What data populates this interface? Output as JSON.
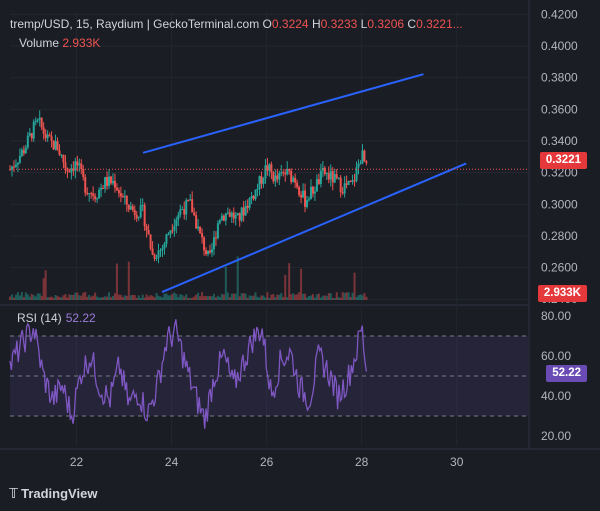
{
  "header": {
    "symbol": "tremp/USD, 15, Raydium | GeckoTerminal.com",
    "o_label": "O",
    "o_value": "0.3224",
    "h_label": "H",
    "h_value": "0.3233",
    "l_label": "L",
    "l_value": "0.3206",
    "c_label": "C",
    "c_value": "0.3221..."
  },
  "volume": {
    "label": "Volume",
    "value": "2.933K"
  },
  "rsi": {
    "label": "RSI (14)",
    "value": "52.22"
  },
  "price_badge": "0.3221",
  "volume_badge": "2.933K",
  "rsi_badge": "52.22",
  "branding": "TradingView",
  "colors": {
    "up": "#26a69a",
    "down": "#ef5350",
    "channel": "#2962ff",
    "rsi": "#7e57c2",
    "bg": "#1b1d25"
  },
  "chart_data": [
    {
      "type": "candlestick",
      "title": "tremp/USD, 15, Raydium",
      "x_ticks": [
        "22",
        "24",
        "26",
        "28",
        "30"
      ],
      "x_range": [
        20.6,
        31.5
      ],
      "y_ticks": [
        "0.4200",
        "0.4000",
        "0.3800",
        "0.3600",
        "0.3400",
        "0.3200",
        "0.3000",
        "0.2800",
        "0.2600",
        "0.2400"
      ],
      "y_range": [
        0.2395,
        0.4215
      ],
      "last_price": 0.3221,
      "close_series_approx": [
        [
          20.6,
          0.322
        ],
        [
          20.9,
          0.335
        ],
        [
          21.1,
          0.348
        ],
        [
          21.2,
          0.352
        ],
        [
          21.4,
          0.34
        ],
        [
          21.6,
          0.336
        ],
        [
          21.8,
          0.322
        ],
        [
          22.0,
          0.326
        ],
        [
          22.2,
          0.31
        ],
        [
          22.4,
          0.306
        ],
        [
          22.6,
          0.314
        ],
        [
          22.8,
          0.314
        ],
        [
          23.0,
          0.302
        ],
        [
          23.2,
          0.296
        ],
        [
          23.4,
          0.295
        ],
        [
          23.6,
          0.268
        ],
        [
          23.8,
          0.272
        ],
        [
          24.0,
          0.287
        ],
        [
          24.2,
          0.297
        ],
        [
          24.4,
          0.3
        ],
        [
          24.6,
          0.28
        ],
        [
          24.8,
          0.264
        ],
        [
          25.0,
          0.292
        ],
        [
          25.2,
          0.295
        ],
        [
          25.4,
          0.29
        ],
        [
          25.6,
          0.301
        ],
        [
          25.8,
          0.31
        ],
        [
          26.0,
          0.324
        ],
        [
          26.2,
          0.315
        ],
        [
          26.4,
          0.32
        ],
        [
          26.6,
          0.316
        ],
        [
          26.8,
          0.302
        ],
        [
          27.0,
          0.31
        ],
        [
          27.2,
          0.32
        ],
        [
          27.4,
          0.316
        ],
        [
          27.6,
          0.311
        ],
        [
          27.8,
          0.312
        ],
        [
          28.0,
          0.332
        ],
        [
          28.1,
          0.3221
        ]
      ],
      "channel_upper": [
        [
          23.4,
          0.3325
        ],
        [
          29.3,
          0.3822
        ]
      ],
      "channel_lower": [
        [
          23.8,
          0.2445
        ],
        [
          30.2,
          0.3258
        ]
      ],
      "volume_last": "2.933K"
    },
    {
      "type": "line",
      "title": "RSI (14)",
      "y_ticks": [
        "80.00",
        "60.00",
        "40.00",
        "20.00"
      ],
      "y_range": [
        15,
        83
      ],
      "bands": [
        30,
        50,
        70
      ],
      "last_value": 52.22,
      "series_approx": [
        [
          20.6,
          55
        ],
        [
          20.9,
          68
        ],
        [
          21.1,
          74
        ],
        [
          21.3,
          50
        ],
        [
          21.5,
          38
        ],
        [
          21.7,
          45
        ],
        [
          21.9,
          30
        ],
        [
          22.1,
          52
        ],
        [
          22.3,
          60
        ],
        [
          22.5,
          44
        ],
        [
          22.7,
          38
        ],
        [
          22.9,
          55
        ],
        [
          23.1,
          36
        ],
        [
          23.3,
          42
        ],
        [
          23.5,
          31
        ],
        [
          23.7,
          45
        ],
        [
          23.9,
          68
        ],
        [
          24.1,
          72
        ],
        [
          24.3,
          55
        ],
        [
          24.5,
          40
        ],
        [
          24.7,
          28
        ],
        [
          24.9,
          50
        ],
        [
          25.1,
          60
        ],
        [
          25.3,
          45
        ],
        [
          25.5,
          56
        ],
        [
          25.7,
          68
        ],
        [
          25.9,
          74
        ],
        [
          26.1,
          40
        ],
        [
          26.3,
          58
        ],
        [
          26.5,
          62
        ],
        [
          26.7,
          44
        ],
        [
          26.9,
          38
        ],
        [
          27.1,
          60
        ],
        [
          27.3,
          52
        ],
        [
          27.5,
          40
        ],
        [
          27.7,
          48
        ],
        [
          27.9,
          63
        ],
        [
          28.0,
          75
        ],
        [
          28.1,
          52.22
        ]
      ]
    }
  ]
}
